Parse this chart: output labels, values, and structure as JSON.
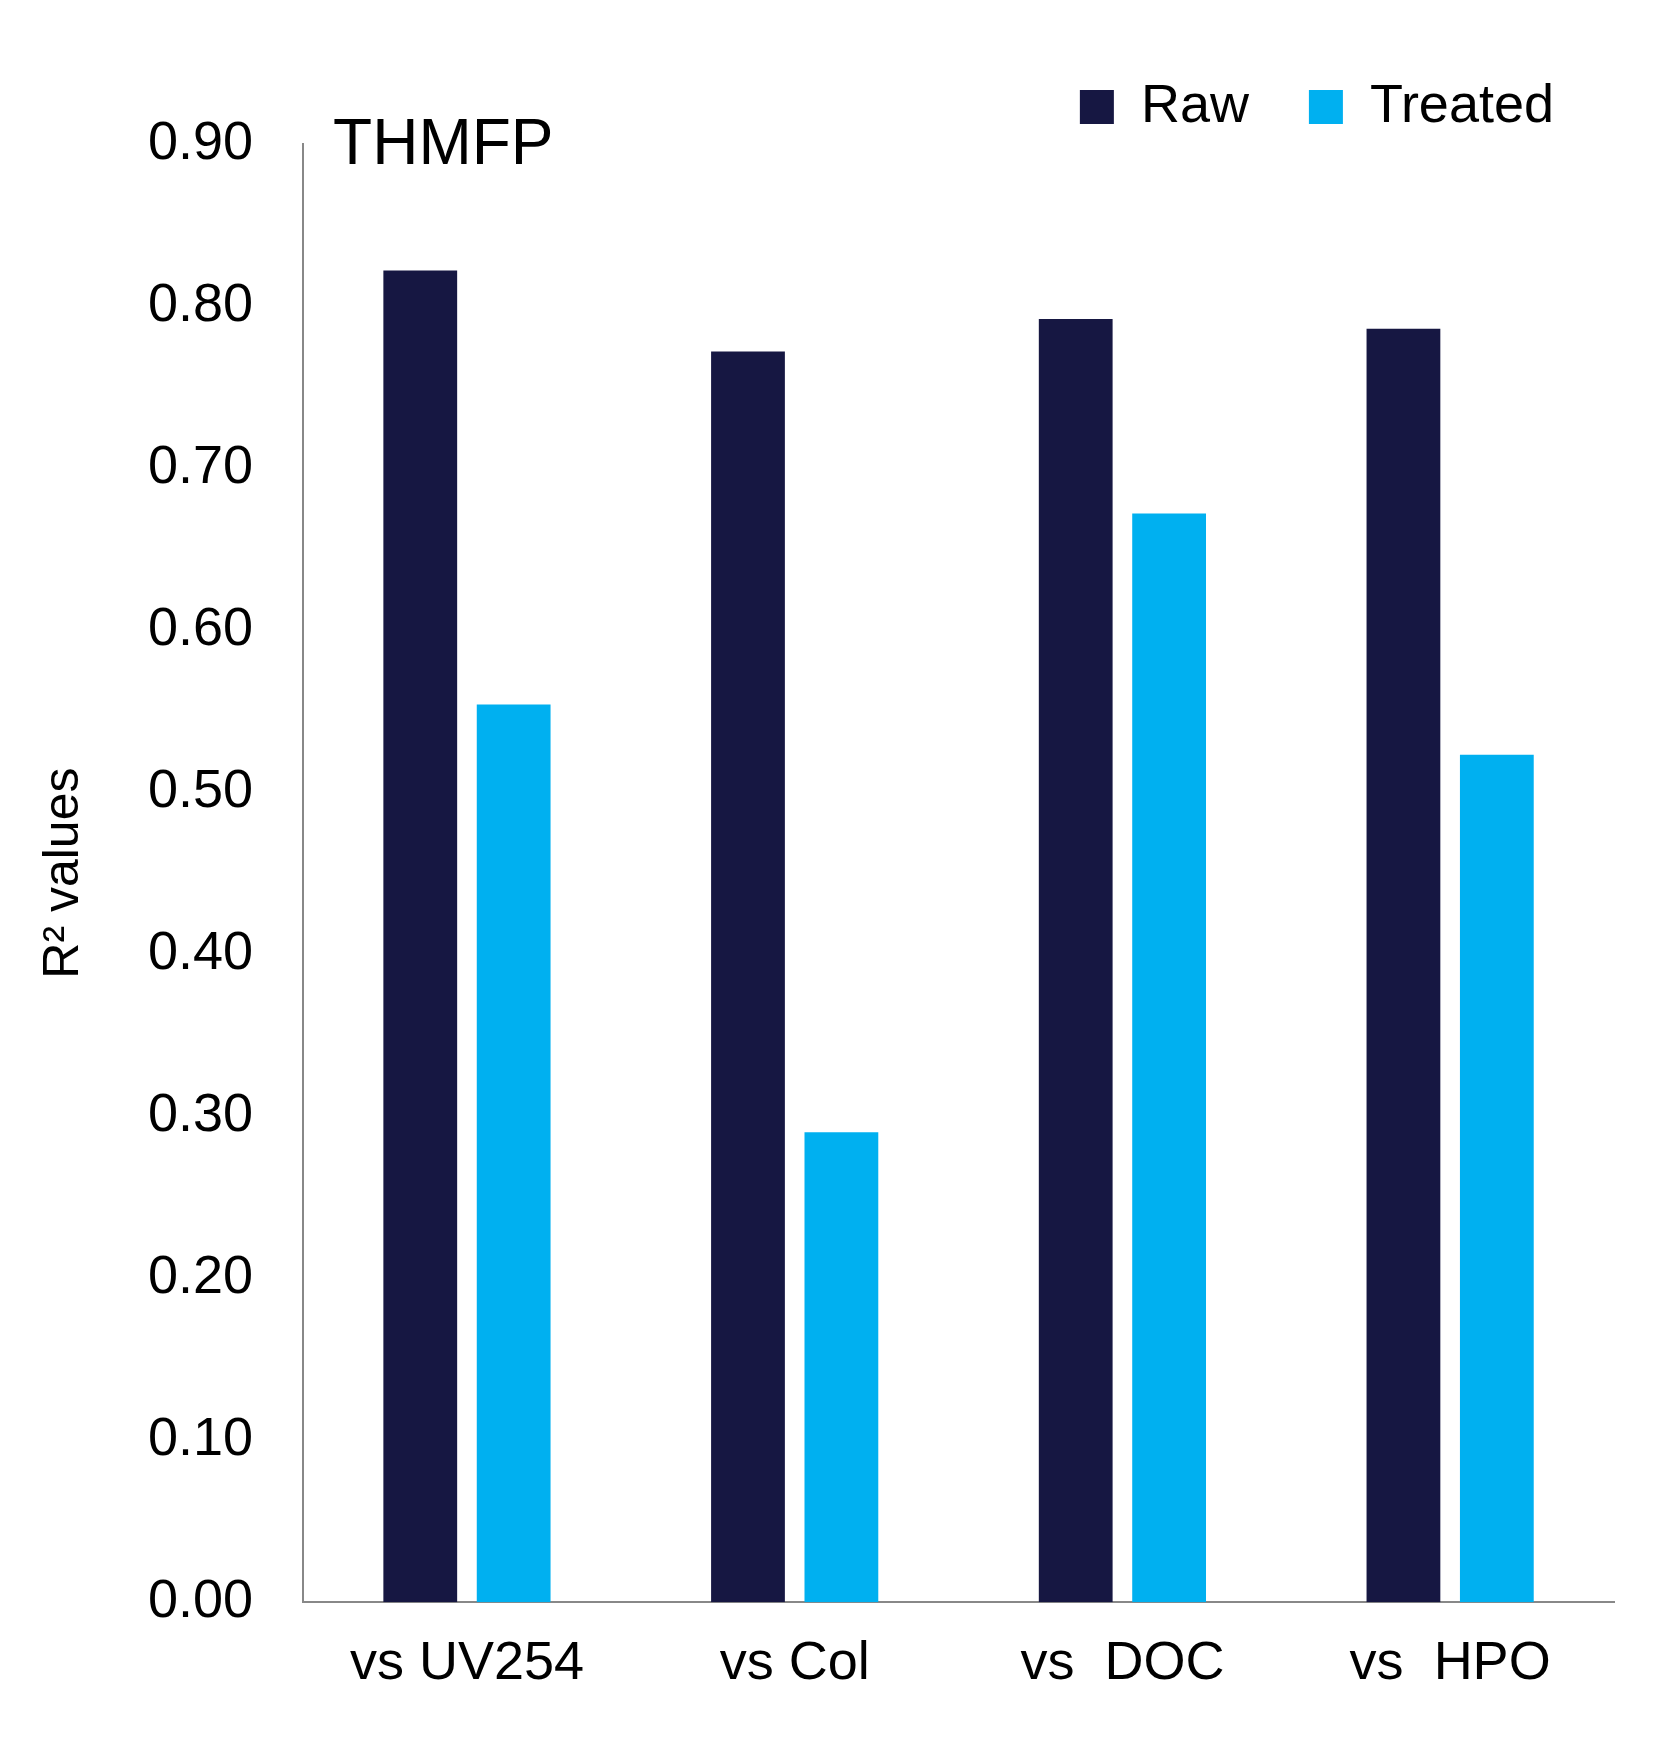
{
  "chart_data": {
    "type": "bar",
    "title": "THMFP",
    "ylabel": "R² values",
    "categories": [
      "vs UV254",
      "vs Col",
      "vs  DOC",
      "vs  HPO"
    ],
    "series": [
      {
        "name": "Raw",
        "color": "#161742",
        "values": [
          0.822,
          0.772,
          0.792,
          0.786
        ]
      },
      {
        "name": "Treated",
        "color": "#00b0f0",
        "values": [
          0.554,
          0.29,
          0.672,
          0.523
        ]
      }
    ],
    "ylim": [
      0,
      0.9
    ],
    "yticks": [
      {
        "value": 0,
        "label": "0.00"
      },
      {
        "value": 0.1,
        "label": "0.10"
      },
      {
        "value": 0.2,
        "label": "0.20"
      },
      {
        "value": 0.3,
        "label": "0.30"
      },
      {
        "value": 0.4,
        "label": "0.40"
      },
      {
        "value": 0.5,
        "label": "0.50"
      },
      {
        "value": 0.6,
        "label": "0.60"
      },
      {
        "value": 0.7,
        "label": "0.70"
      },
      {
        "value": 0.8,
        "label": "0.80"
      },
      {
        "value": 0.9,
        "label": "0.90"
      }
    ],
    "grid": false,
    "legend": "top right"
  }
}
